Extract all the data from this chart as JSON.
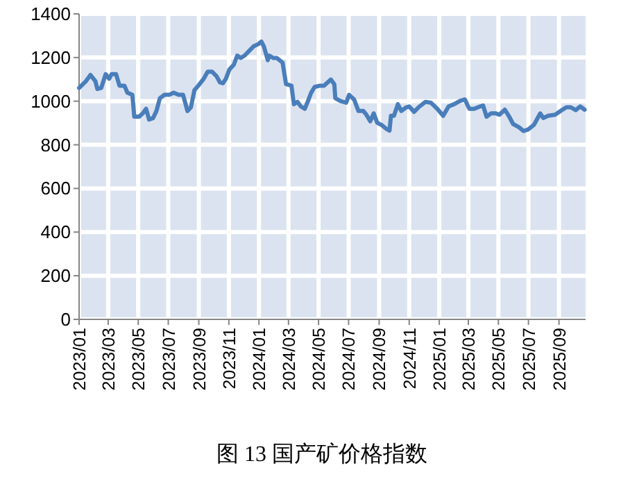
{
  "chart_data": {
    "type": "line",
    "x": [
      "2023-01-01",
      "2023-01-15",
      "2023-01-24",
      "2023-02-03",
      "2023-02-07",
      "2023-02-15",
      "2023-02-24",
      "2023-03-03",
      "2023-03-08",
      "2023-03-17",
      "2023-03-24",
      "2023-04-03",
      "2023-04-09",
      "2023-04-19",
      "2023-04-23",
      "2023-05-03",
      "2023-05-10",
      "2023-05-17",
      "2023-05-23",
      "2023-05-31",
      "2023-06-07",
      "2023-06-14",
      "2023-06-23",
      "2023-07-03",
      "2023-07-12",
      "2023-07-22",
      "2023-07-31",
      "2023-08-09",
      "2023-08-16",
      "2023-08-23",
      "2023-08-31",
      "2023-09-11",
      "2023-09-19",
      "2023-09-28",
      "2023-10-07",
      "2023-10-14",
      "2023-10-20",
      "2023-10-26",
      "2023-11-02",
      "2023-11-11",
      "2023-11-18",
      "2023-11-25",
      "2023-12-03",
      "2023-12-12",
      "2023-12-21",
      "2023-12-31",
      "2024-01-06",
      "2024-01-11",
      "2024-01-19",
      "2024-01-22",
      "2024-01-30",
      "2024-02-06",
      "2024-02-18",
      "2024-02-25",
      "2024-03-07",
      "2024-03-12",
      "2024-03-19",
      "2024-03-26",
      "2024-04-03",
      "2024-04-09",
      "2024-04-16",
      "2024-04-23",
      "2024-05-04",
      "2024-05-12",
      "2024-05-26",
      "2024-06-02",
      "2024-06-04",
      "2024-06-14",
      "2024-06-26",
      "2024-07-02",
      "2024-07-12",
      "2024-07-21",
      "2024-07-31",
      "2024-08-06",
      "2024-08-14",
      "2024-08-21",
      "2024-08-28",
      "2024-09-06",
      "2024-09-15",
      "2024-09-22",
      "2024-09-25",
      "2024-10-01",
      "2024-10-09",
      "2024-10-16",
      "2024-10-26",
      "2024-11-01",
      "2024-11-11",
      "2024-11-20",
      "2024-12-04",
      "2024-12-15",
      "2024-12-28",
      "2025-01-09",
      "2025-01-20",
      "2025-01-31",
      "2025-02-12",
      "2025-02-22",
      "2025-03-03",
      "2025-03-13",
      "2025-03-25",
      "2025-03-31",
      "2025-04-07",
      "2025-04-16",
      "2025-04-26",
      "2025-05-03",
      "2025-05-14",
      "2025-05-22",
      "2025-05-31",
      "2025-06-12",
      "2025-06-21",
      "2025-06-30",
      "2025-07-12",
      "2025-07-25",
      "2025-07-31",
      "2025-08-10",
      "2025-08-24",
      "2025-09-07",
      "2025-09-16",
      "2025-09-25",
      "2025-10-05",
      "2025-10-14",
      "2025-10-23"
    ],
    "series": [
      {
        "color": "#4a7ebb",
        "values": [
          1061,
          1092,
          1120,
          1092,
          1056,
          1061,
          1124,
          1103,
          1124,
          1124,
          1071,
          1071,
          1039,
          1029,
          929,
          929,
          944,
          965,
          916,
          922,
          955,
          1014,
          1029,
          1029,
          1039,
          1029,
          1029,
          955,
          972,
          1050,
          1071,
          1103,
          1135,
          1135,
          1114,
          1086,
          1082,
          1103,
          1145,
          1167,
          1209,
          1198,
          1209,
          1230,
          1251,
          1262,
          1273,
          1251,
          1188,
          1209,
          1198,
          1198,
          1177,
          1078,
          1071,
          986,
          997,
          976,
          965,
          997,
          1039,
          1065,
          1071,
          1071,
          1099,
          1078,
          1014,
          1001,
          993,
          1029,
          1008,
          955,
          955,
          938,
          908,
          944,
          901,
          891,
          874,
          865,
          933,
          933,
          986,
          955,
          972,
          976,
          951,
          972,
          997,
          993,
          965,
          933,
          976,
          986,
          1001,
          1008,
          965,
          965,
          976,
          980,
          929,
          944,
          944,
          938,
          961,
          933,
          895,
          880,
          863,
          870,
          891,
          944,
          923,
          933,
          938,
          959,
          972,
          972,
          959,
          976,
          961
        ]
      }
    ],
    "xlim": [
      "2023-01-01",
      "2025-10-25"
    ],
    "xticks": [
      {
        "value": "2023-01-01",
        "label": "2023/01"
      },
      {
        "value": "2023-03-01",
        "label": "2023/03"
      },
      {
        "value": "2023-05-01",
        "label": "2023/05"
      },
      {
        "value": "2023-07-01",
        "label": "2023/07"
      },
      {
        "value": "2023-09-01",
        "label": "2023/09"
      },
      {
        "value": "2023-11-01",
        "label": "2023/11"
      },
      {
        "value": "2024-01-01",
        "label": "2024/01"
      },
      {
        "value": "2024-03-01",
        "label": "2024/03"
      },
      {
        "value": "2024-05-01",
        "label": "2024/05"
      },
      {
        "value": "2024-07-01",
        "label": "2024/07"
      },
      {
        "value": "2024-09-01",
        "label": "2024/09"
      },
      {
        "value": "2024-11-01",
        "label": "2024/11"
      },
      {
        "value": "2025-01-01",
        "label": "2025/01"
      },
      {
        "value": "2025-03-01",
        "label": "2025/03"
      },
      {
        "value": "2025-05-01",
        "label": "2025/05"
      },
      {
        "value": "2025-07-01",
        "label": "2025/07"
      },
      {
        "value": "2025-09-01",
        "label": "2025/09"
      }
    ],
    "ylim": [
      0,
      1400
    ],
    "yticks": [
      0,
      200,
      400,
      600,
      800,
      1000,
      1200,
      1400
    ],
    "grid": true,
    "annotations": [
      "图 13 国产矿价格指数"
    ]
  }
}
